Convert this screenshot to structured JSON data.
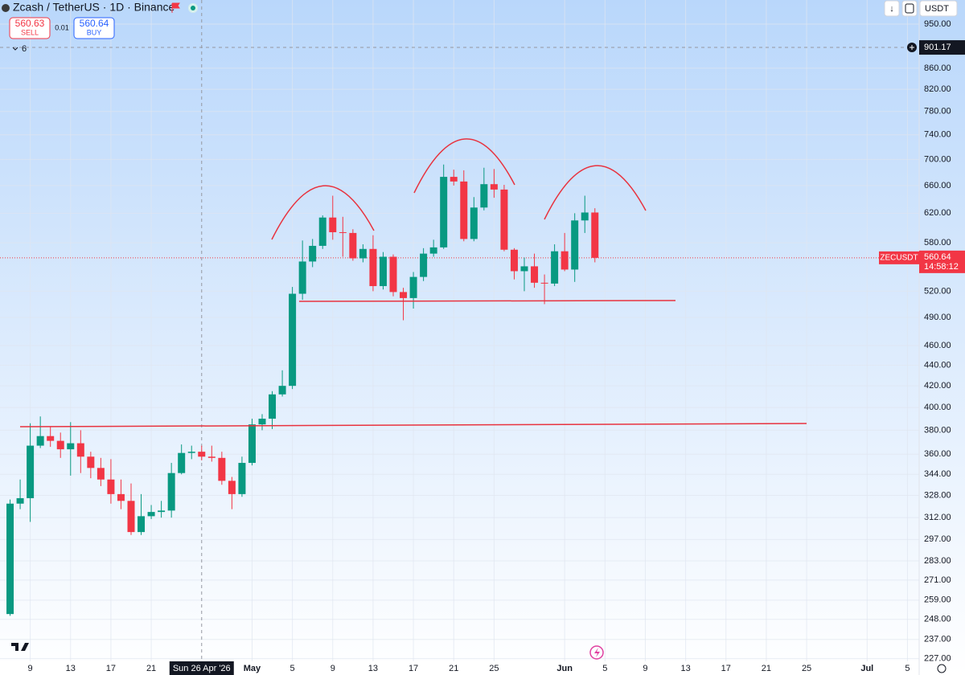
{
  "header": {
    "title": "Zcash / TetherUS · 1D · Binance",
    "sell_price": 560.63,
    "sell_label": "SELL",
    "spread": 0.01,
    "buy_price": 560.64,
    "buy_label": "BUY",
    "indicators_count": 6
  },
  "toolbar": {
    "currency": "USDT"
  },
  "chart_data": {
    "type": "candlestick",
    "log_scale": true,
    "grid": true,
    "up_color": "#089981",
    "down_color": "#f23645",
    "x": [
      "2026-04-07",
      "2026-04-08",
      "2026-04-09",
      "2026-04-10",
      "2026-04-11",
      "2026-04-12",
      "2026-04-13",
      "2026-04-14",
      "2026-04-15",
      "2026-04-16",
      "2026-04-17",
      "2026-04-18",
      "2026-04-19",
      "2026-04-20",
      "2026-04-21",
      "2026-04-22",
      "2026-04-23",
      "2026-04-24",
      "2026-04-25",
      "2026-04-26",
      "2026-04-27",
      "2026-04-28",
      "2026-04-29",
      "2026-04-30",
      "2026-05-01",
      "2026-05-02",
      "2026-05-03",
      "2026-05-04",
      "2026-05-05",
      "2026-05-06",
      "2026-05-07",
      "2026-05-08",
      "2026-05-09",
      "2026-05-10",
      "2026-05-11",
      "2026-05-12",
      "2026-05-13",
      "2026-05-14",
      "2026-05-15",
      "2026-05-16",
      "2026-05-17",
      "2026-05-18",
      "2026-05-19",
      "2026-05-20",
      "2026-05-21",
      "2026-05-22",
      "2026-05-23",
      "2026-05-24",
      "2026-05-25",
      "2026-05-26",
      "2026-05-27",
      "2026-05-28",
      "2026-05-29",
      "2026-05-30",
      "2026-05-31",
      "2026-06-01",
      "2026-06-02",
      "2026-06-03",
      "2026-06-04"
    ],
    "open": [
      251,
      322,
      326,
      367,
      375,
      371,
      364,
      369,
      358,
      349,
      340,
      329,
      324,
      302,
      313,
      316,
      317,
      345,
      361,
      362,
      358,
      357,
      339,
      329,
      353,
      385,
      390,
      412,
      420,
      517,
      556,
      576,
      614,
      594,
      593,
      560,
      572,
      526,
      562,
      519,
      512,
      537,
      566,
      574,
      673,
      666,
      585,
      628,
      662,
      654,
      571,
      544,
      550,
      530,
      529,
      569,
      546,
      610,
      621
    ],
    "high": [
      325,
      340,
      386,
      392,
      383,
      378,
      387,
      380,
      362,
      357,
      356,
      340,
      337,
      329,
      321,
      324,
      353,
      368,
      367,
      367,
      367,
      362,
      342,
      358,
      390,
      394,
      415,
      435,
      525,
      583,
      585,
      617,
      645,
      615,
      598,
      578,
      590,
      568,
      565,
      524,
      543,
      573,
      584,
      692,
      684,
      683,
      643,
      687,
      685,
      661,
      573,
      561,
      566,
      540,
      578,
      593,
      620,
      645,
      627
    ],
    "low": [
      250,
      318,
      309,
      365,
      366,
      357,
      343,
      345,
      341,
      335,
      322,
      318,
      300,
      300,
      311,
      312,
      312,
      344,
      356,
      355,
      354,
      336,
      318,
      327,
      351,
      380,
      381,
      410,
      417,
      510,
      549,
      572,
      584,
      562,
      557,
      555,
      520,
      522,
      514,
      487,
      500,
      532,
      562,
      572,
      660,
      582,
      582,
      624,
      642,
      569,
      534,
      520,
      524,
      505,
      526,
      544,
      531,
      593,
      555
    ],
    "close": [
      322,
      326,
      367,
      375,
      371,
      364,
      369,
      358,
      349,
      340,
      329,
      324,
      302,
      313,
      316,
      317,
      345,
      361,
      362,
      358,
      357,
      339,
      329,
      353,
      385,
      390,
      412,
      420,
      517,
      556,
      576,
      614,
      594,
      593,
      560,
      572,
      526,
      562,
      519,
      512,
      537,
      566,
      574,
      673,
      666,
      585,
      628,
      662,
      654,
      571,
      544,
      550,
      530,
      529,
      569,
      546,
      610,
      621,
      560.64
    ],
    "xlim": [
      "2026-04-06",
      "2026-07-06"
    ],
    "xticks": [
      {
        "value": "2026-04-09",
        "label": "9"
      },
      {
        "value": "2026-04-13",
        "label": "13"
      },
      {
        "value": "2026-04-17",
        "label": "17"
      },
      {
        "value": "2026-04-21",
        "label": "21"
      },
      {
        "value": "2026-05-01",
        "label": "May"
      },
      {
        "value": "2026-05-05",
        "label": "5"
      },
      {
        "value": "2026-05-09",
        "label": "9"
      },
      {
        "value": "2026-05-13",
        "label": "13"
      },
      {
        "value": "2026-05-17",
        "label": "17"
      },
      {
        "value": "2026-05-21",
        "label": "21"
      },
      {
        "value": "2026-05-25",
        "label": "25"
      },
      {
        "value": "2026-06-01",
        "label": "Jun"
      },
      {
        "value": "2026-06-05",
        "label": "5"
      },
      {
        "value": "2026-06-09",
        "label": "9"
      },
      {
        "value": "2026-06-13",
        "label": "13"
      },
      {
        "value": "2026-06-17",
        "label": "17"
      },
      {
        "value": "2026-06-21",
        "label": "21"
      },
      {
        "value": "2026-06-25",
        "label": "25"
      },
      {
        "value": "2026-07-01",
        "label": "Jul"
      },
      {
        "value": "2026-07-05",
        "label": "5"
      }
    ],
    "ylim": [
      225.6,
      1003
    ],
    "yticks": [
      {
        "value": 950,
        "label": "950.00"
      },
      {
        "value": 860,
        "label": "860.00"
      },
      {
        "value": 820,
        "label": "820.00"
      },
      {
        "value": 780,
        "label": "780.00"
      },
      {
        "value": 740,
        "label": "740.00"
      },
      {
        "value": 700,
        "label": "700.00"
      },
      {
        "value": 660,
        "label": "660.00"
      },
      {
        "value": 620,
        "label": "620.00"
      },
      {
        "value": 580,
        "label": "580.00"
      },
      {
        "value": 520,
        "label": "520.00"
      },
      {
        "value": 490,
        "label": "490.00"
      },
      {
        "value": 460,
        "label": "460.00"
      },
      {
        "value": 440,
        "label": "440.00"
      },
      {
        "value": 420,
        "label": "420.00"
      },
      {
        "value": 400,
        "label": "400.00"
      },
      {
        "value": 380,
        "label": "380.00"
      },
      {
        "value": 360,
        "label": "360.00"
      },
      {
        "value": 344,
        "label": "344.00"
      },
      {
        "value": 328,
        "label": "328.00"
      },
      {
        "value": 312,
        "label": "312.00"
      },
      {
        "value": 297,
        "label": "297.00"
      },
      {
        "value": 283,
        "label": "283.00"
      },
      {
        "value": 271,
        "label": "271.00"
      },
      {
        "value": 259,
        "label": "259.00"
      },
      {
        "value": 248,
        "label": "248.00"
      },
      {
        "value": 237,
        "label": "237.00"
      },
      {
        "value": 227,
        "label": "227.00"
      }
    ],
    "last_price": {
      "symbol": "ZECUSDT",
      "price": 560.64,
      "countdown": "14:58:12"
    },
    "crosshair": {
      "x": "2026-04-26",
      "x_label": "Sun 26 Apr '26",
      "y": 901.17
    }
  }
}
